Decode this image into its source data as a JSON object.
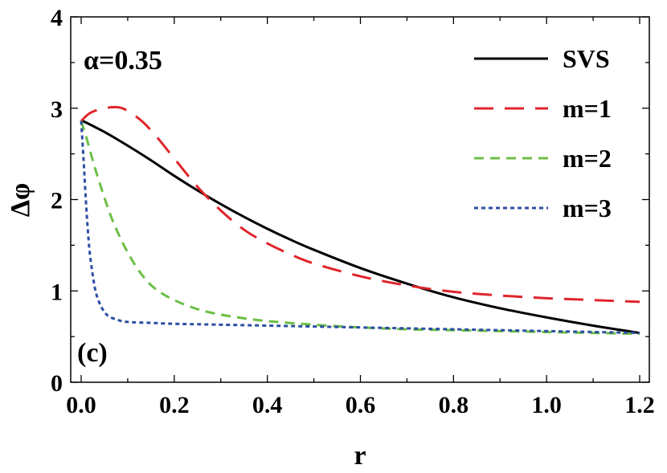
{
  "chart_data": {
    "type": "line",
    "xlabel": "r",
    "ylabel": "Δφ",
    "xlim": [
      0.0,
      1.2
    ],
    "ylim": [
      0,
      4
    ],
    "x_ticks": [
      "0.0",
      "0.2",
      "0.4",
      "0.6",
      "0.8",
      "1.0",
      "1.2"
    ],
    "y_ticks": [
      "0",
      "1",
      "2",
      "3",
      "4"
    ],
    "grid": false,
    "legend_position": "top-right",
    "annotations": {
      "parameter": "α=0.35",
      "panel": "(c)"
    },
    "series": [
      {
        "name": "SVS",
        "color": "#000000",
        "dash": "solid",
        "x": [
          0.0,
          0.05,
          0.1,
          0.15,
          0.2,
          0.25,
          0.3,
          0.35,
          0.4,
          0.45,
          0.5,
          0.6,
          0.7,
          0.8,
          0.9,
          1.0,
          1.1,
          1.2
        ],
        "y": [
          2.87,
          2.74,
          2.59,
          2.43,
          2.26,
          2.1,
          1.95,
          1.81,
          1.68,
          1.56,
          1.45,
          1.25,
          1.08,
          0.93,
          0.81,
          0.71,
          0.62,
          0.54
        ]
      },
      {
        "name": "m=1",
        "color": "#e0252b",
        "dash": "long",
        "x": [
          0.0,
          0.02,
          0.05,
          0.08,
          0.1,
          0.13,
          0.16,
          0.2,
          0.25,
          0.3,
          0.35,
          0.4,
          0.45,
          0.5,
          0.6,
          0.7,
          0.8,
          0.9,
          1.0,
          1.1,
          1.2
        ],
        "y": [
          2.86,
          2.95,
          3.0,
          3.01,
          2.97,
          2.86,
          2.7,
          2.45,
          2.14,
          1.88,
          1.67,
          1.52,
          1.4,
          1.3,
          1.16,
          1.06,
          0.99,
          0.95,
          0.92,
          0.9,
          0.88
        ]
      },
      {
        "name": "m=2",
        "color": "#6cbf45",
        "dash": "medium",
        "x": [
          0.0,
          0.01,
          0.02,
          0.03,
          0.05,
          0.07,
          0.1,
          0.13,
          0.16,
          0.2,
          0.25,
          0.3,
          0.35,
          0.4,
          0.5,
          0.6,
          0.7,
          0.8,
          0.9,
          1.0,
          1.1,
          1.2
        ],
        "y": [
          2.86,
          2.7,
          2.52,
          2.34,
          2.02,
          1.74,
          1.42,
          1.18,
          1.02,
          0.9,
          0.8,
          0.74,
          0.7,
          0.67,
          0.63,
          0.6,
          0.58,
          0.57,
          0.56,
          0.55,
          0.54,
          0.53
        ]
      },
      {
        "name": "m=3",
        "color": "#2c4fa3",
        "dash": "short",
        "x": [
          0.0,
          0.005,
          0.01,
          0.015,
          0.02,
          0.03,
          0.04,
          0.05,
          0.06,
          0.08,
          0.1,
          0.15,
          0.2,
          0.3,
          0.4,
          0.6,
          0.8,
          1.0,
          1.2
        ],
        "y": [
          2.86,
          2.45,
          2.0,
          1.62,
          1.35,
          1.02,
          0.86,
          0.77,
          0.72,
          0.68,
          0.66,
          0.65,
          0.64,
          0.63,
          0.62,
          0.6,
          0.58,
          0.56,
          0.54
        ]
      }
    ]
  }
}
